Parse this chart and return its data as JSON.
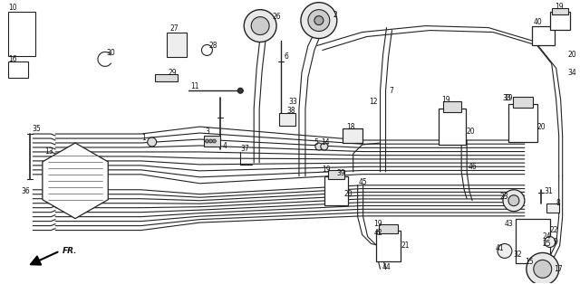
{
  "bg_color": "#ffffff",
  "line_color": "#222222",
  "fig_width": 6.4,
  "fig_height": 3.14,
  "dpi": 100
}
